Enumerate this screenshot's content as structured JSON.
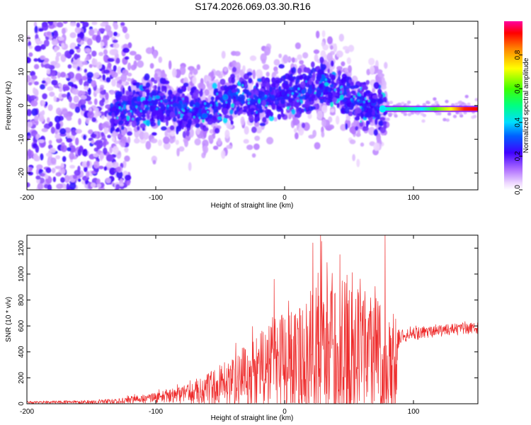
{
  "title": "S174.2026.069.03.30.R16",
  "colors": {
    "snr_line": "#ee2b2b",
    "spectrogram_low": "#8f1fff",
    "spectrogram_mid": "#00e0ff",
    "spectrogram_high": "#ff0000"
  },
  "chart_data": [
    {
      "type": "heatmap",
      "name": "spectrogram",
      "xlabel": "Height of straight line (km)",
      "ylabel": "Frequency (Hz)",
      "xlim": [
        -200,
        150
      ],
      "ylim": [
        -25,
        25
      ],
      "xticks": [
        -200,
        -100,
        0,
        100
      ],
      "xtick_labels": [
        "-200",
        "-100",
        "0",
        "100"
      ],
      "yticks": [
        -20,
        -10,
        0,
        10,
        20
      ],
      "ytick_labels": [
        "-20",
        "-10",
        "0",
        "10",
        "20"
      ],
      "colorbar": {
        "label": "Normalized spectral amplitude",
        "range": [
          0,
          1
        ],
        "ticks": [
          0.0,
          0.2,
          0.4,
          0.6,
          0.8
        ],
        "tick_labels": [
          "0.0",
          "0.2",
          "0.4",
          "0.6",
          "0.8"
        ]
      },
      "description_points": {
        "noise_region_x": [
          -200,
          -130
        ],
        "signal_band_center": [
          [
            -135,
            -2
          ],
          [
            -120,
            0
          ],
          [
            -100,
            0
          ],
          [
            -80,
            -1
          ],
          [
            -60,
            -2
          ],
          [
            -40,
            3
          ],
          [
            -20,
            1
          ],
          [
            0,
            4
          ],
          [
            20,
            4
          ],
          [
            30,
            7
          ],
          [
            50,
            2
          ],
          [
            70,
            -1
          ],
          [
            80,
            -1
          ],
          [
            150,
            -1
          ]
        ],
        "narrow_line_x": [
          75,
          150
        ],
        "narrow_line_freq": -1,
        "narrow_line_peak_amplitude": 1.0
      }
    },
    {
      "type": "line",
      "name": "snr",
      "xlabel": "Height of straight line (km)",
      "ylabel": "SNR (10 * v/v)",
      "xlim": [
        -200,
        150
      ],
      "ylim": [
        0,
        1300
      ],
      "xticks": [
        -200,
        -100,
        0,
        100
      ],
      "xtick_labels": [
        "-200",
        "-100",
        "0",
        "100"
      ],
      "yticks": [
        0,
        200,
        400,
        600,
        800,
        1000,
        1200
      ],
      "ytick_labels": [
        "0",
        "200",
        "400",
        "600",
        "800",
        "1000",
        "1200"
      ],
      "envelope": {
        "x": [
          -200,
          -150,
          -130,
          -100,
          -80,
          -60,
          -40,
          -20,
          0,
          20,
          30,
          40,
          50,
          60,
          70,
          75,
          80,
          85,
          90,
          110,
          130,
          150
        ],
        "base": [
          10,
          12,
          20,
          45,
          70,
          110,
          170,
          230,
          300,
          370,
          380,
          390,
          380,
          360,
          330,
          300,
          250,
          200,
          520,
          550,
          570,
          580
        ],
        "amp": [
          10,
          15,
          20,
          40,
          70,
          120,
          200,
          320,
          420,
          520,
          560,
          580,
          560,
          520,
          500,
          520,
          450,
          380,
          50,
          45,
          45,
          45
        ]
      },
      "peaks": [
        {
          "x": -8,
          "y": 960
        },
        {
          "x": 22,
          "y": 1240
        },
        {
          "x": 28,
          "y": 1300
        },
        {
          "x": 43,
          "y": 1150
        },
        {
          "x": 78,
          "y": 1300
        }
      ]
    }
  ]
}
